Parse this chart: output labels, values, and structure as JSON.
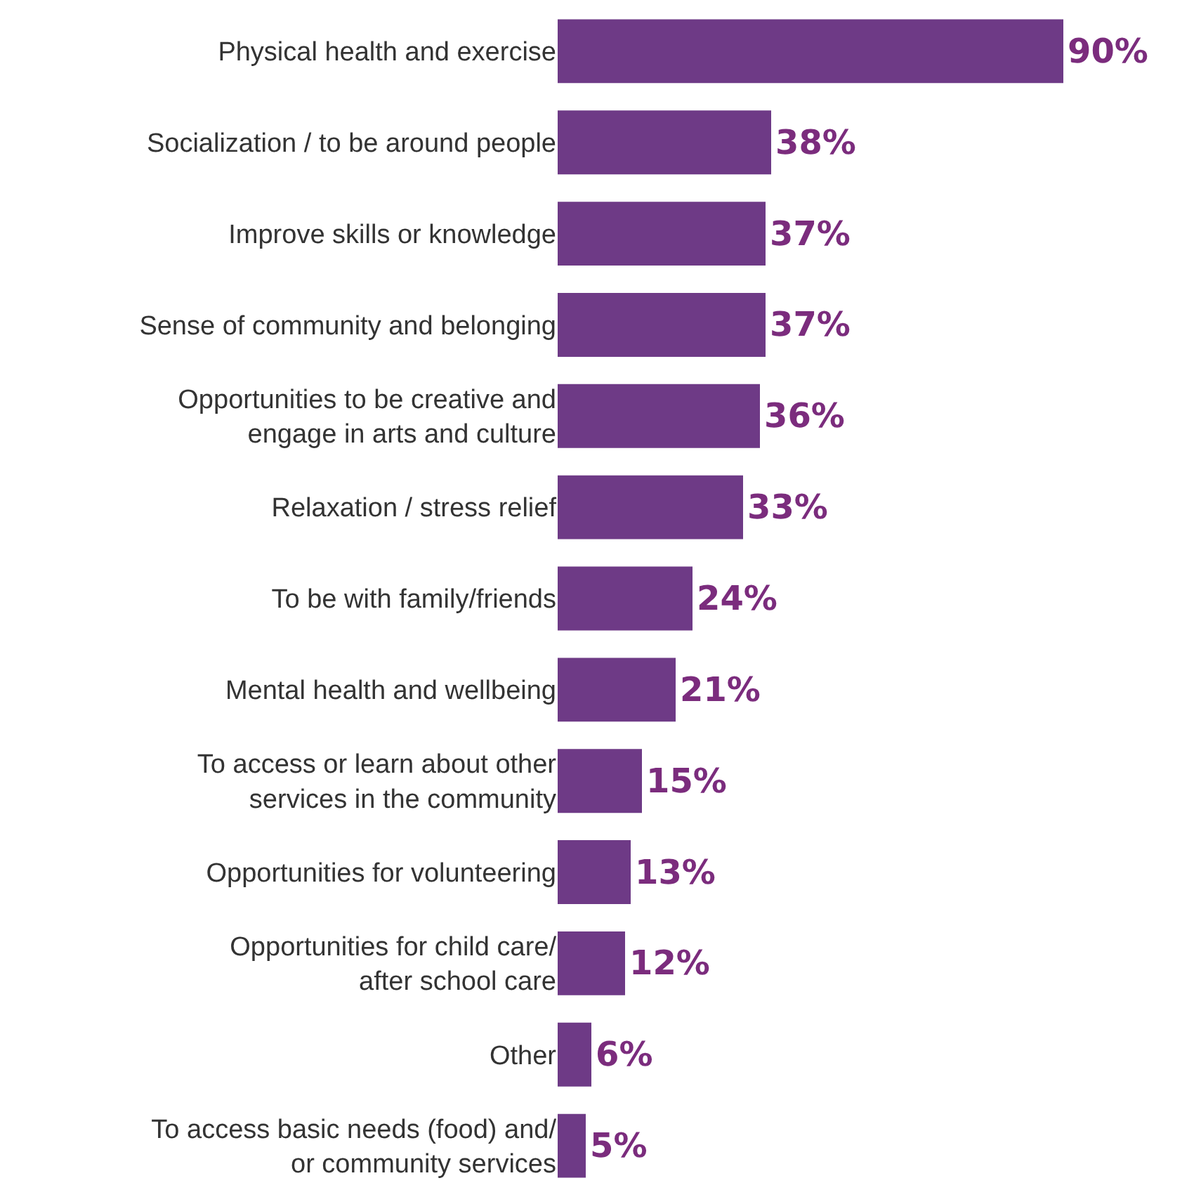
{
  "chart_data": {
    "type": "bar",
    "orientation": "horizontal",
    "categories": [
      "Physical health and exercise",
      "Socialization / to be around people",
      "Improve skills or knowledge",
      "Sense of community and belonging",
      "Opportunities to be creative and\nengage in arts and culture",
      "Relaxation / stress relief",
      "To be with family/friends",
      "Mental health and wellbeing",
      "To access or learn about other\nservices in the community",
      "Opportunities for volunteering",
      "Opportunities for child care/\nafter school care",
      "Other",
      "To access basic needs (food) and/\nor community services"
    ],
    "values": [
      90,
      38,
      37,
      37,
      36,
      33,
      24,
      21,
      15,
      13,
      12,
      6,
      5
    ],
    "value_labels": [
      "90%",
      "38%",
      "37%",
      "37%",
      "36%",
      "33%",
      "24%",
      "21%",
      "15%",
      "13%",
      "12%",
      "6%",
      "5%"
    ],
    "color": "#6e3a86",
    "grid": false,
    "legend": false
  }
}
